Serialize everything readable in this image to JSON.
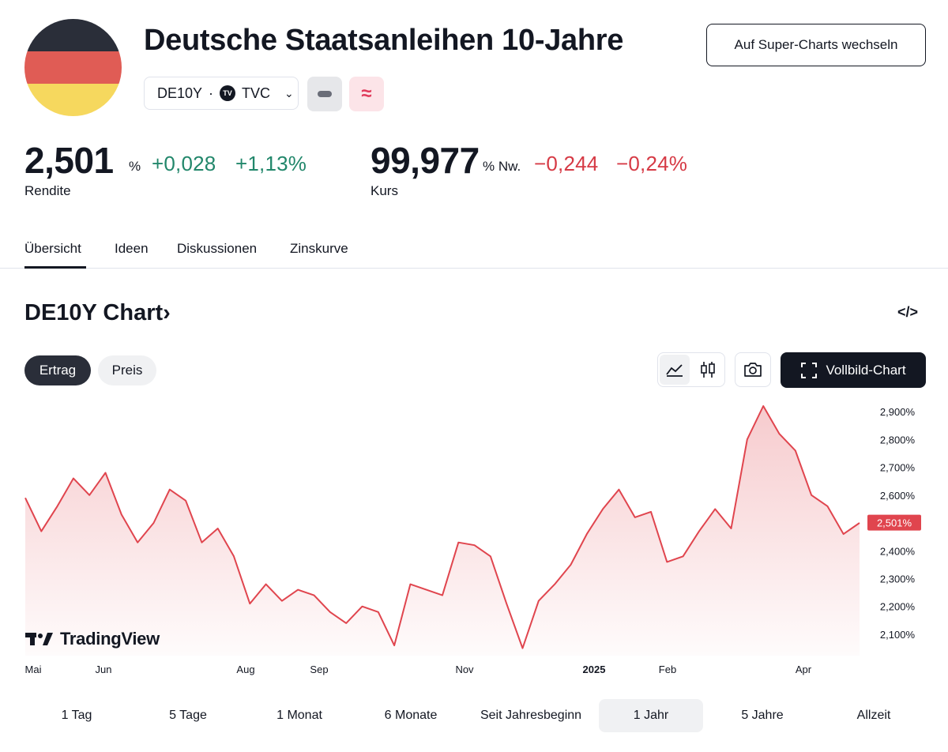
{
  "header": {
    "title": "Deutsche Staatsanleihen 10-Jahre",
    "symbol": "DE10Y",
    "separator": "·",
    "exchange_logo": "TV",
    "exchange": "TVC",
    "switch_button": "Auf Super-Charts wechseln",
    "approx_symbol": "≈",
    "flag_colors": [
      "#2a2e39",
      "#e05c55",
      "#f6d85e"
    ]
  },
  "yield": {
    "value": "2,501",
    "unit": "%",
    "change": "+0,028",
    "change_pct": "+1,13%",
    "label": "Rendite"
  },
  "price": {
    "value": "99,977",
    "unit": "% Nw.",
    "change": "−0,244",
    "change_pct": "−0,24%",
    "label": "Kurs"
  },
  "tabs": [
    "Übersicht",
    "Ideen",
    "Diskussionen",
    "Zinskurve"
  ],
  "chart_header": {
    "title": "DE10Y Chart",
    "arrow": "›",
    "embed": "</>"
  },
  "toggle": {
    "on": "Ertrag",
    "off": "Preis"
  },
  "fullscreen_label": "Vollbild-Chart",
  "branding": "TradingView",
  "chart_data": {
    "type": "area",
    "y_unit": "%",
    "y_ticks": [
      "2,900%",
      "2,800%",
      "2,700%",
      "2,600%",
      "2,500%",
      "2,400%",
      "2,300%",
      "2,200%",
      "2,100%"
    ],
    "x_ticks": [
      "Mai",
      "Jun",
      "Aug",
      "Sep",
      "Nov",
      "2025",
      "Feb",
      "Apr"
    ],
    "last_value": 2.501,
    "last_label": "2,501%",
    "ylim": [
      2.04,
      2.94
    ],
    "grid": false,
    "series_color": "#e0454e",
    "x": [
      "2024-05-01",
      "2024-05-08",
      "2024-05-15",
      "2024-05-22",
      "2024-05-29",
      "2024-06-05",
      "2024-06-12",
      "2024-06-19",
      "2024-06-26",
      "2024-07-03",
      "2024-07-10",
      "2024-07-17",
      "2024-07-24",
      "2024-07-31",
      "2024-08-07",
      "2024-08-14",
      "2024-08-21",
      "2024-08-28",
      "2024-09-04",
      "2024-09-11",
      "2024-09-18",
      "2024-09-25",
      "2024-10-02",
      "2024-10-09",
      "2024-10-16",
      "2024-10-23",
      "2024-10-30",
      "2024-11-06",
      "2024-11-13",
      "2024-11-20",
      "2024-11-27",
      "2024-12-04",
      "2024-12-11",
      "2024-12-18",
      "2024-12-25",
      "2025-01-01",
      "2025-01-08",
      "2025-01-15",
      "2025-01-22",
      "2025-01-29",
      "2025-02-05",
      "2025-02-12",
      "2025-02-19",
      "2025-02-26",
      "2025-03-05",
      "2025-03-12",
      "2025-03-19",
      "2025-03-26",
      "2025-04-02",
      "2025-04-09",
      "2025-04-16",
      "2025-04-23",
      "2025-04-30"
    ],
    "values": [
      2.59,
      2.47,
      2.56,
      2.66,
      2.6,
      2.68,
      2.53,
      2.43,
      2.5,
      2.62,
      2.58,
      2.43,
      2.48,
      2.38,
      2.21,
      2.28,
      2.22,
      2.26,
      2.24,
      2.18,
      2.14,
      2.2,
      2.18,
      2.06,
      2.28,
      2.26,
      2.24,
      2.43,
      2.42,
      2.38,
      2.21,
      2.05,
      2.22,
      2.28,
      2.35,
      2.46,
      2.55,
      2.62,
      2.52,
      2.54,
      2.36,
      2.38,
      2.47,
      2.55,
      2.48,
      2.8,
      2.92,
      2.82,
      2.76,
      2.6,
      2.56,
      2.46,
      2.5
    ]
  },
  "ranges": [
    "1 Tag",
    "5 Tage",
    "1 Monat",
    "6 Monate",
    "Seit Jahresbeginn",
    "1 Jahr",
    "5 Jahre",
    "Allzeit"
  ],
  "active_range": "1 Jahr"
}
